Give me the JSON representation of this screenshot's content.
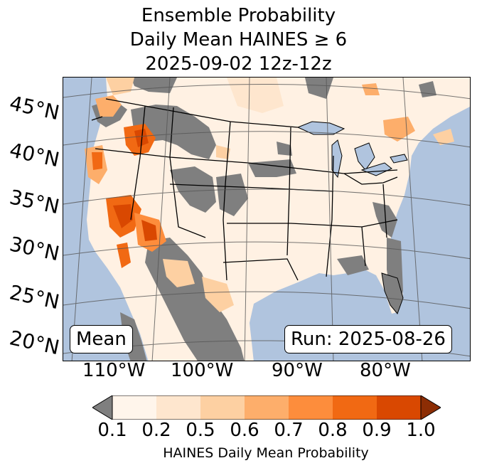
{
  "title": {
    "line1": "Ensemble Probability",
    "line2": "Daily Mean HAINES ≥ 6",
    "line3": "2025-09-02 12z-12z"
  },
  "map": {
    "lat_labels": [
      "45°N",
      "40°N",
      "35°N",
      "30°N",
      "25°N",
      "20°N"
    ],
    "lon_labels": [
      "110°W",
      "100°W",
      "90°W",
      "80°W"
    ],
    "stat_label": "Mean",
    "run_label": "Run: 2025-08-26",
    "colors": {
      "ocean": "#b0c4de",
      "land_low": "#fff1e3",
      "gray_mask": "#7f7f7f",
      "graticule": "#555555"
    }
  },
  "colorbar": {
    "label": "HAINES Daily Mean Probability",
    "ticks": [
      "0.1",
      "0.2",
      "0.5",
      "0.6",
      "0.7",
      "0.8",
      "0.9",
      "1.0"
    ],
    "under_color": "#7f7f7f",
    "bins": [
      "#fff5eb",
      "#fee6ce",
      "#fdd0a2",
      "#fdae6b",
      "#fd8d3c",
      "#f16913",
      "#d94801"
    ],
    "over_color": "#8c2d04"
  }
}
